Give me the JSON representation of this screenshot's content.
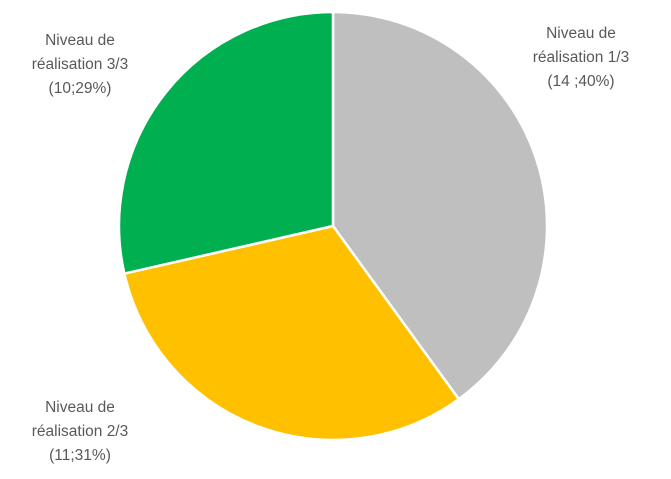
{
  "chart_data": {
    "type": "pie",
    "title": "",
    "slices": [
      {
        "label": "Niveau de réalisation 1/3",
        "value": 14,
        "percent": 40,
        "color": "#bfbfbf",
        "label_lines": [
          "Niveau de",
          "réalisation 1/3",
          "(14 ;40%)"
        ]
      },
      {
        "label": "Niveau de réalisation 2/3",
        "value": 11,
        "percent": 31,
        "color": "#ffc000",
        "label_lines": [
          "Niveau de",
          "réalisation 2/3",
          "(11;31%)"
        ]
      },
      {
        "label": "Niveau de réalisation 3/3",
        "value": 10,
        "percent": 29,
        "color": "#00b050",
        "label_lines": [
          "Niveau de",
          "réalisation 3/3",
          "(10;29%)"
        ]
      }
    ],
    "start_angle_deg": 0,
    "direction": "clockwise",
    "legend": "none",
    "border_color": "#ffffff"
  }
}
